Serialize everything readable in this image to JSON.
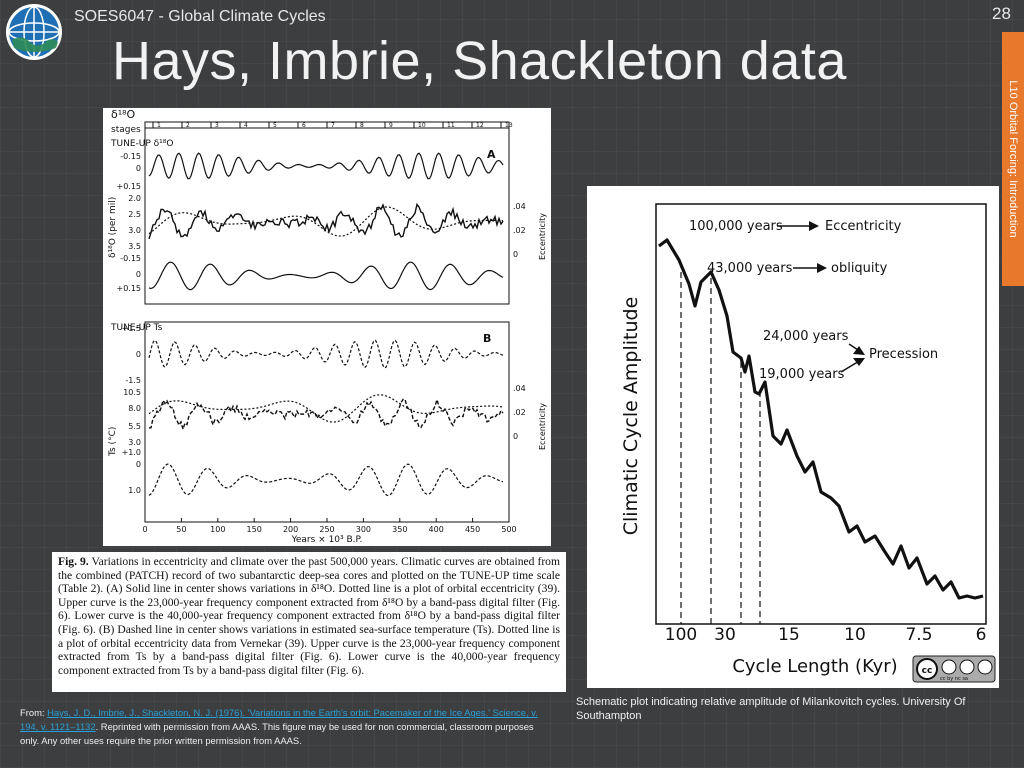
{
  "header": {
    "course_title": "SOES6047 - Global Climate Cycles",
    "slide_number": "28",
    "side_tab_label": "L10 Orbital Forcing: Introduction",
    "accent_color": "#e8782b"
  },
  "slide": {
    "title": "Hays, Imbrie, Shackleton data"
  },
  "left_figure": {
    "stages_label": "stages",
    "delta_label": "δ¹⁸O",
    "panel_a": {
      "label": "A",
      "tune_label": "TUNE-UP δ¹⁸O",
      "y_label": "δ¹⁸O (per mil)",
      "y_ticks": [
        "-0.15",
        "0",
        "+0.15",
        "2.0",
        "2.5",
        "3.0",
        "3.5",
        "-0.15",
        "0",
        "+0.15"
      ],
      "ecc_ticks": [
        ".04",
        ".02",
        "0"
      ],
      "ecc_label": "Eccentricity"
    },
    "panel_b": {
      "label": "B",
      "tune_label": "TUNE-UP Ts",
      "y_label": "Ts (°C)",
      "y_ticks": [
        "+1.5",
        "0",
        "-1.5",
        "10.5",
        "8.0",
        "5.5",
        "3.0",
        "+1.0",
        "0",
        "1.0"
      ],
      "ecc_ticks": [
        ".04",
        ".02",
        "0"
      ],
      "ecc_label": "Eccentricity"
    },
    "x_ticks": [
      "0",
      "50",
      "100",
      "150",
      "200",
      "250",
      "300",
      "350",
      "400",
      "450",
      "500"
    ],
    "x_label": "Years × 10³ B.P.",
    "stage_numbers": [
      "1",
      "2",
      "3",
      "4",
      "5",
      "6",
      "7",
      "8",
      "9",
      "10",
      "11",
      "12",
      "13"
    ]
  },
  "caption": {
    "fig_label": "Fig. 9.",
    "text": "Variations in eccentricity and climate over the past 500,000 years. Climatic curves are obtained from the combined (PATCH) record of two subantarctic deep-sea cores and plotted on the TUNE-UP time scale (Table 2). (A) Solid line in center shows variations in δ¹⁸O. Dotted line is a plot of orbital eccentricity (39). Upper curve is the 23,000-year frequency component extracted from δ¹⁸O by a band-pass digital filter (Fig. 6). Lower curve is the 40,000-year frequency component extracted from δ¹⁸O by a band-pass digital filter (Fig. 6). (B) Dashed line in center shows variations in estimated sea-surface temperature (Ts). Dotted line is a plot of orbital eccentricity data from Vernekar (39). Upper curve is the 23,000-year frequency component extracted from Ts by a band-pass digital filter (Fig. 6). Lower curve is the 40,000-year frequency component extracted from Ts by a band-pass digital filter (Fig. 6)."
  },
  "right_figure": {
    "y_label": "Climatic Cycle Amplitude",
    "x_label": "Cycle Length (Kyr)",
    "x_ticks": [
      "100",
      "30",
      "15",
      "10",
      "7.5",
      "6"
    ],
    "annotations": {
      "ecc_years": "100,000 years",
      "ecc_name": "Eccentricity",
      "obl_years": "43,000 years",
      "obl_name": "obliquity",
      "prec_years_a": "24,000 years",
      "prec_years_b": "19,000 years",
      "prec_name": "Precession"
    },
    "license_badge": "cc by nc sa"
  },
  "credits": {
    "left_prefix": "From: ",
    "left_link": "Hays, J. D., Imbrie, J., Shackleton, N. J. (1976). 'Variations in the Earth's orbit: Pacemaker of the Ice Ages.' Science, v. 194, v. 1121–1132",
    "left_suffix": ". Reprinted with permission from AAAS. This figure may be used for non commercial, classroom purposes only. Any other uses require the prior written permission from AAAS.",
    "right": "Schematic plot indicating relative amplitude of Milankovitch cycles. University Of Southampton"
  }
}
